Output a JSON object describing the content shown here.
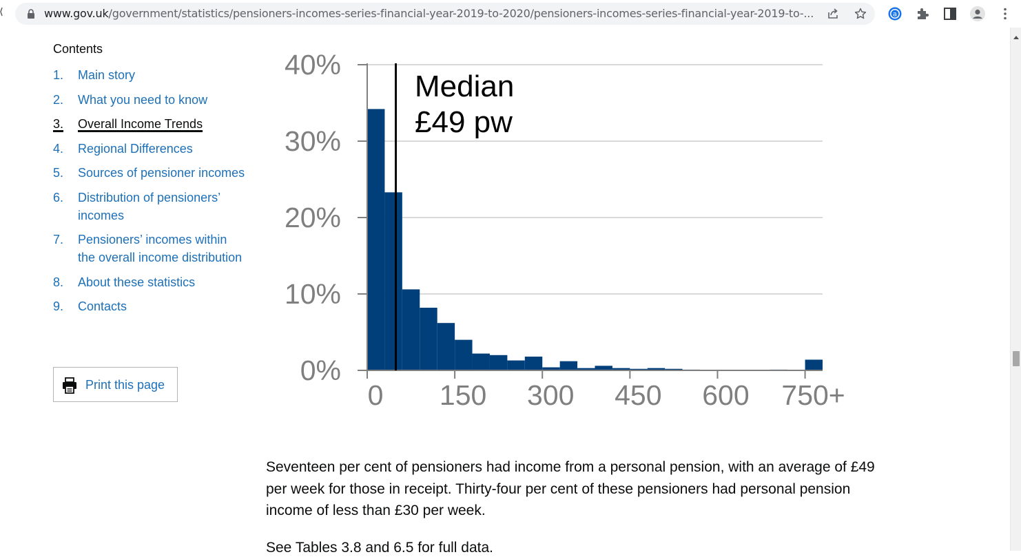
{
  "browser": {
    "url_host": "www.gov.uk",
    "url_path": "/government/statistics/pensioners-incomes-series-financial-year-2019-to-2020/pensioners-incomes-series-financial-year-2019-to-..."
  },
  "contents": {
    "title": "Contents",
    "items": [
      {
        "num": "1.",
        "label": "Main story"
      },
      {
        "num": "2.",
        "label": "What you need to know"
      },
      {
        "num": "3.",
        "label": "Overall Income Trends",
        "active": true
      },
      {
        "num": "4.",
        "label": "Regional Differences"
      },
      {
        "num": "5.",
        "label": "Sources of pensioner incomes"
      },
      {
        "num": "6.",
        "label": "Distribution of pensioners’ incomes"
      },
      {
        "num": "7.",
        "label": "Pensioners’ incomes within the overall income distribution"
      },
      {
        "num": "8.",
        "label": "About these statistics"
      },
      {
        "num": "9.",
        "label": "Contacts"
      }
    ],
    "print_label": "Print this page"
  },
  "colors": {
    "link": "#1d70b8",
    "bar": "#003f7a",
    "text": "#0b0c0c"
  },
  "chart_data": {
    "type": "bar",
    "title": "",
    "xlabel": "",
    "ylabel": "",
    "x_ticks": [
      "0",
      "150",
      "300",
      "450",
      "600",
      "750+"
    ],
    "x_tick_values": [
      0,
      150,
      300,
      450,
      600,
      750
    ],
    "y_ticks": [
      "0%",
      "10%",
      "20%",
      "30%",
      "40%"
    ],
    "ylim": [
      0,
      40
    ],
    "xlim": [
      0,
      780
    ],
    "bin_width": 30,
    "bin_starts": [
      0,
      30,
      60,
      90,
      120,
      150,
      180,
      210,
      240,
      270,
      300,
      330,
      360,
      390,
      420,
      450,
      480,
      510,
      540,
      570,
      600,
      630,
      660,
      690,
      720,
      750
    ],
    "values": [
      34.2,
      23.3,
      10.6,
      8.2,
      6.2,
      4.0,
      2.2,
      2.0,
      1.3,
      1.8,
      0.4,
      1.2,
      0.3,
      0.6,
      0.3,
      0.2,
      0.3,
      0.2,
      0.1,
      0.0,
      0.0,
      0.0,
      0.0,
      0.1,
      0.0,
      1.4
    ],
    "median_value": 49,
    "annotation": [
      "Median",
      "£49 pw"
    ],
    "grid": true
  },
  "body": {
    "paragraph": "Seventeen per cent of pensioners had income from a personal pension, with an average of £49 per week for those in receipt. Thirty-four per cent of these pensioners had personal pension income of less than £30 per week.",
    "see_tables": "See Tables 3.8 and 6.5 for full data."
  }
}
